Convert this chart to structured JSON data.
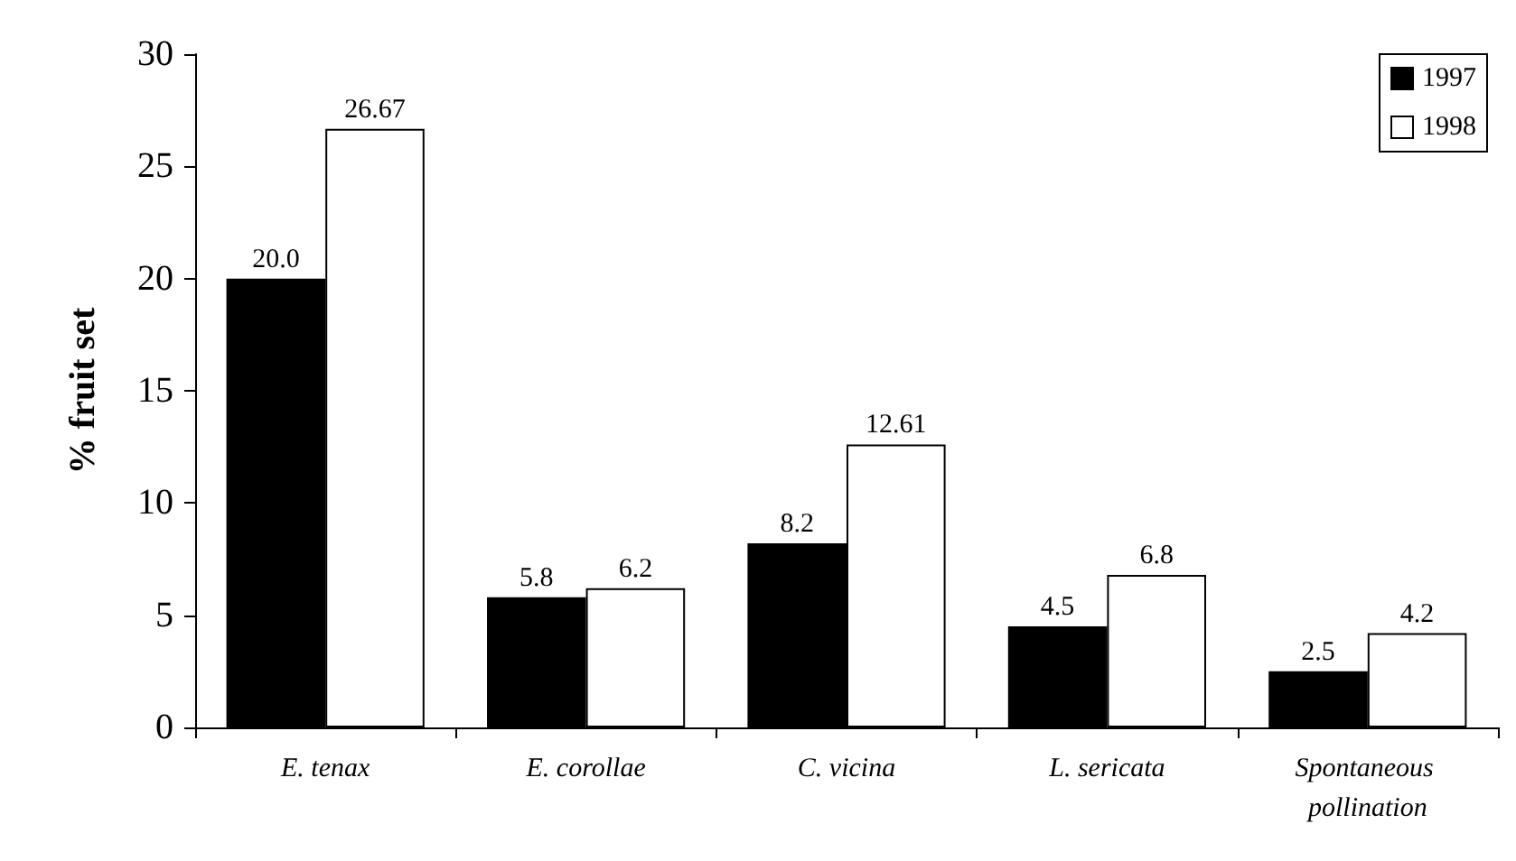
{
  "chart_data": {
    "type": "bar",
    "ylabel": "% fruit set",
    "categories": [
      "E. tenax",
      "E. corollae",
      "C. vicina",
      "L. sericata",
      "Spontaneous pollination"
    ],
    "series": [
      {
        "name": "1997",
        "color": "#000000",
        "values": [
          20.0,
          5.8,
          8.2,
          4.5,
          2.5
        ],
        "value_labels": [
          "20.0",
          "5.8",
          "8.2",
          "4.5",
          "2.5"
        ]
      },
      {
        "name": "1998",
        "color": "#ffffff",
        "values": [
          26.67,
          6.2,
          12.61,
          6.8,
          4.2
        ],
        "value_labels": [
          "26.67",
          "6.2",
          "12.61",
          "6.8",
          "4.2"
        ]
      }
    ],
    "ylim": [
      0,
      30
    ],
    "yticks": [
      0,
      5,
      10,
      15,
      20,
      25,
      30
    ],
    "grid": false,
    "legend": "top right"
  }
}
